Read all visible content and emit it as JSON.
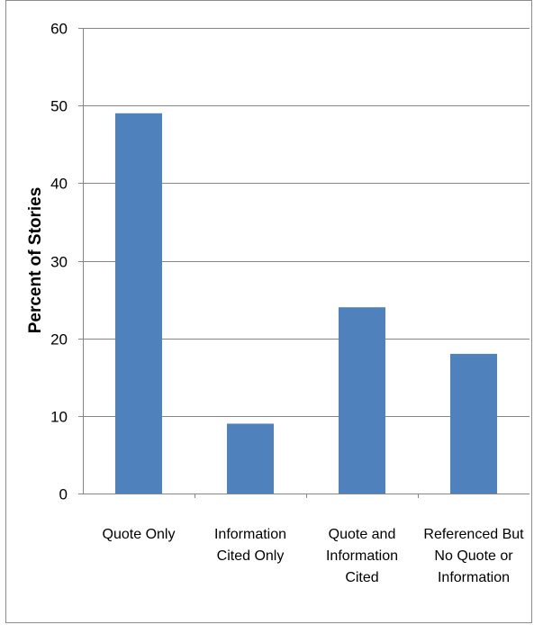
{
  "chart_data": {
    "type": "bar",
    "title": "",
    "xlabel": "",
    "ylabel": "Percent of Stories",
    "categories": [
      [
        "Quote Only"
      ],
      [
        "Information",
        "Cited Only"
      ],
      [
        "Quote and",
        "Information",
        "Cited"
      ],
      [
        "Referenced But",
        "No Quote or",
        "Information"
      ]
    ],
    "values": [
      49,
      9,
      24,
      18
    ],
    "ylim": [
      0,
      60
    ],
    "yticks": [
      0,
      10,
      20,
      30,
      40,
      50,
      60
    ],
    "grid": true,
    "legend": "none",
    "bar_color": "#4F81BD",
    "grid_color": "#868686",
    "axis_color": "#868686"
  }
}
